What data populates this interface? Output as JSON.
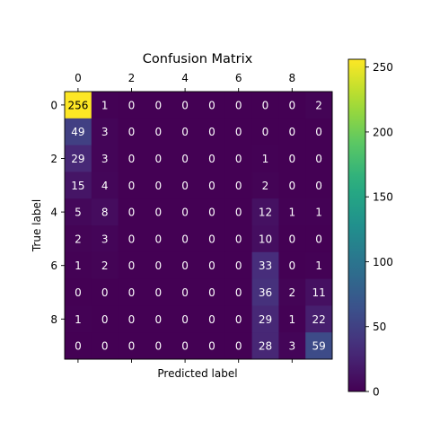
{
  "chart_data": {
    "type": "heatmap",
    "title": "Confusion Matrix",
    "xlabel": "Predicted label",
    "ylabel": "True label",
    "x_tick_labels": [
      "0",
      "2",
      "4",
      "6",
      "8"
    ],
    "x_tick_values": [
      0,
      2,
      4,
      6,
      8
    ],
    "y_tick_labels": [
      "0",
      "2",
      "4",
      "6",
      "8"
    ],
    "y_tick_values": [
      0,
      2,
      4,
      6,
      8
    ],
    "colormap": "viridis",
    "value_range": [
      0,
      256
    ],
    "colorbar_ticks": [
      "0",
      "50",
      "100",
      "150",
      "200",
      "250"
    ],
    "colorbar_tick_values": [
      0,
      50,
      100,
      150,
      200,
      250
    ],
    "matrix": [
      [
        256,
        1,
        0,
        0,
        0,
        0,
        0,
        0,
        0,
        2
      ],
      [
        49,
        3,
        0,
        0,
        0,
        0,
        0,
        0,
        0,
        0
      ],
      [
        29,
        3,
        0,
        0,
        0,
        0,
        0,
        1,
        0,
        0
      ],
      [
        15,
        4,
        0,
        0,
        0,
        0,
        0,
        2,
        0,
        0
      ],
      [
        5,
        8,
        0,
        0,
        0,
        0,
        0,
        12,
        1,
        1
      ],
      [
        2,
        3,
        0,
        0,
        0,
        0,
        0,
        10,
        0,
        0
      ],
      [
        1,
        2,
        0,
        0,
        0,
        0,
        0,
        33,
        0,
        1
      ],
      [
        0,
        0,
        0,
        0,
        0,
        0,
        0,
        36,
        2,
        11
      ],
      [
        1,
        0,
        0,
        0,
        0,
        0,
        0,
        29,
        1,
        22
      ],
      [
        0,
        0,
        0,
        0,
        0,
        0,
        0,
        28,
        3,
        59
      ]
    ]
  }
}
